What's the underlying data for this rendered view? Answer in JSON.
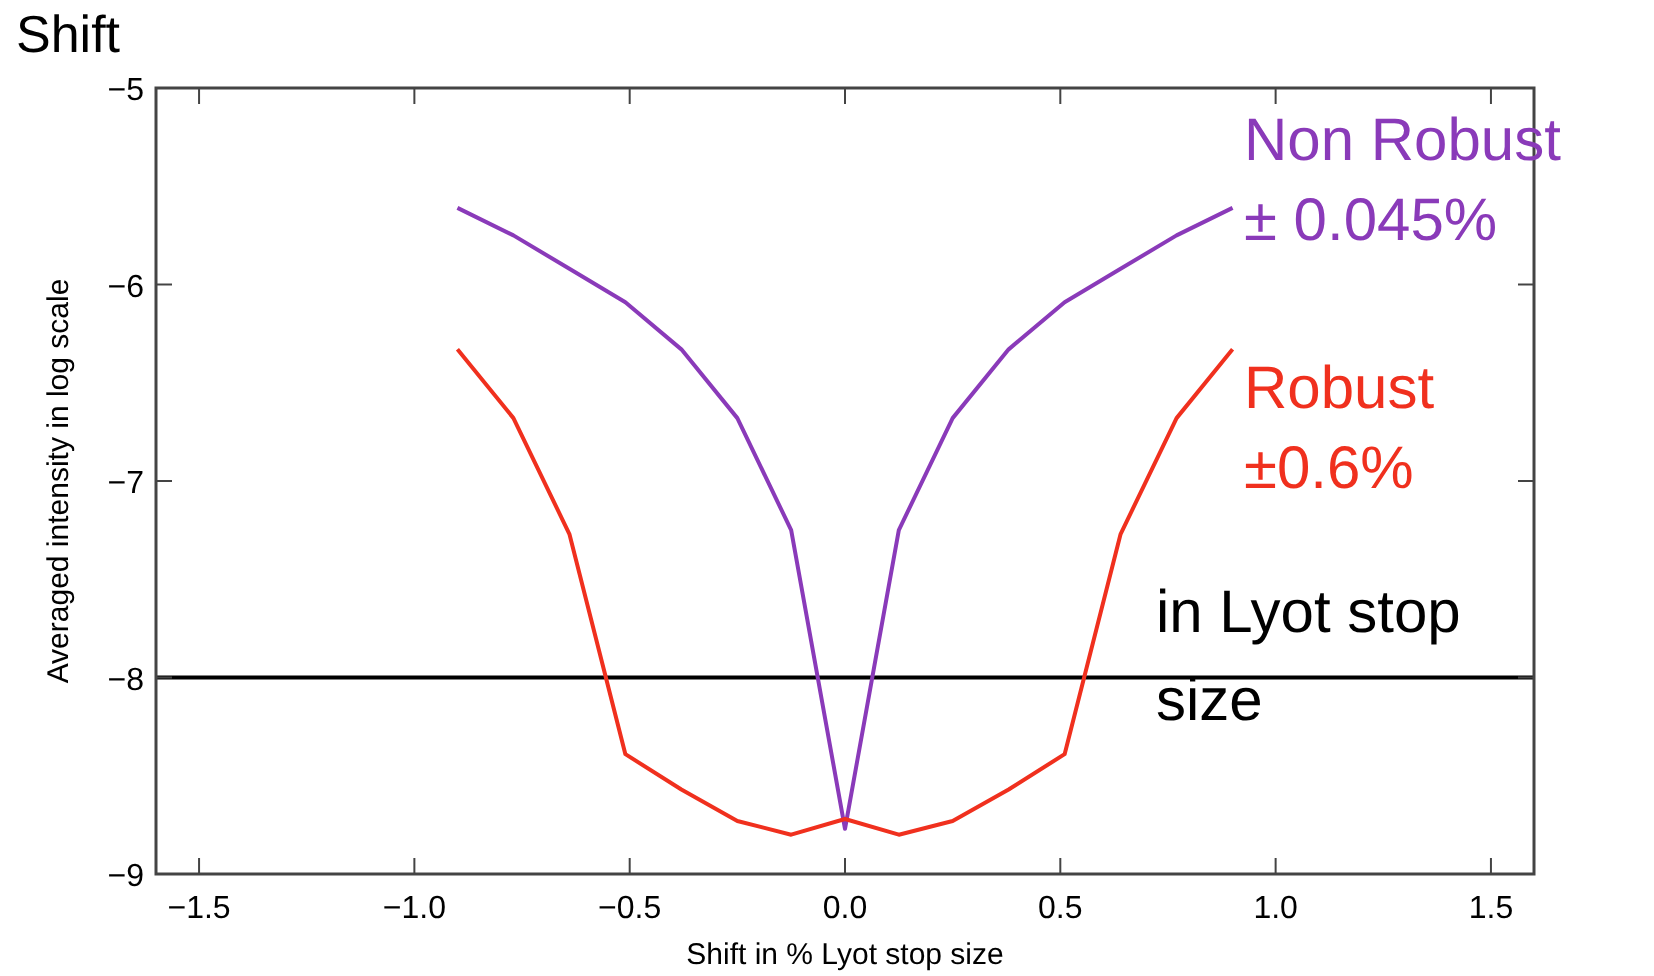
{
  "chart_data": {
    "type": "line",
    "xlabel": "Shift in % Lyot stop size",
    "ylabel": "Averaged intensity in log scale",
    "x": [
      -0.9,
      -0.77,
      -0.64,
      -0.51,
      -0.38,
      -0.25,
      -0.125,
      0,
      0.125,
      0.25,
      0.38,
      0.51,
      0.64,
      0.77,
      0.9
    ],
    "series": [
      {
        "name": "Non Robust ± 0.045%",
        "color": "#8a3ab9",
        "values": [
          -5.61,
          -5.75,
          -5.92,
          -6.09,
          -6.33,
          -6.68,
          -7.25,
          -8.77,
          -7.25,
          -6.68,
          -6.33,
          -6.09,
          -5.92,
          -5.75,
          -5.61
        ]
      },
      {
        "name": "Robust ±0.6%",
        "color": "#f0301e",
        "values": [
          -6.33,
          -6.68,
          -7.27,
          -8.39,
          -8.57,
          -8.73,
          -8.8,
          -8.72,
          -8.8,
          -8.73,
          -8.57,
          -8.39,
          -7.27,
          -6.68,
          -6.33
        ]
      }
    ],
    "xlim": [
      -1.6,
      1.6
    ],
    "xticks": [
      {
        "value": -1.5,
        "label": "−1.5"
      },
      {
        "value": -1,
        "label": "−1.0"
      },
      {
        "value": -0.5,
        "label": "−0.5"
      },
      {
        "value": 0,
        "label": "0.0"
      },
      {
        "value": 0.5,
        "label": "0.5"
      },
      {
        "value": 1,
        "label": "1.0"
      },
      {
        "value": 1.5,
        "label": "1.5"
      }
    ],
    "ylim": [
      -9,
      -5
    ],
    "yticks": [
      {
        "value": -9,
        "label": "−9"
      },
      {
        "value": -8,
        "label": "−8"
      },
      {
        "value": -7,
        "label": "−7"
      },
      {
        "value": -6,
        "label": "−6"
      },
      {
        "value": -5,
        "label": "−5"
      }
    ],
    "ref_lines": [
      {
        "axis": "y",
        "value": -8,
        "color": "#000000"
      }
    ],
    "annotations": [
      "Shift",
      "in Lyot stop size"
    ],
    "grid": false,
    "legend": false,
    "marker": "none",
    "line_style": "solid"
  }
}
